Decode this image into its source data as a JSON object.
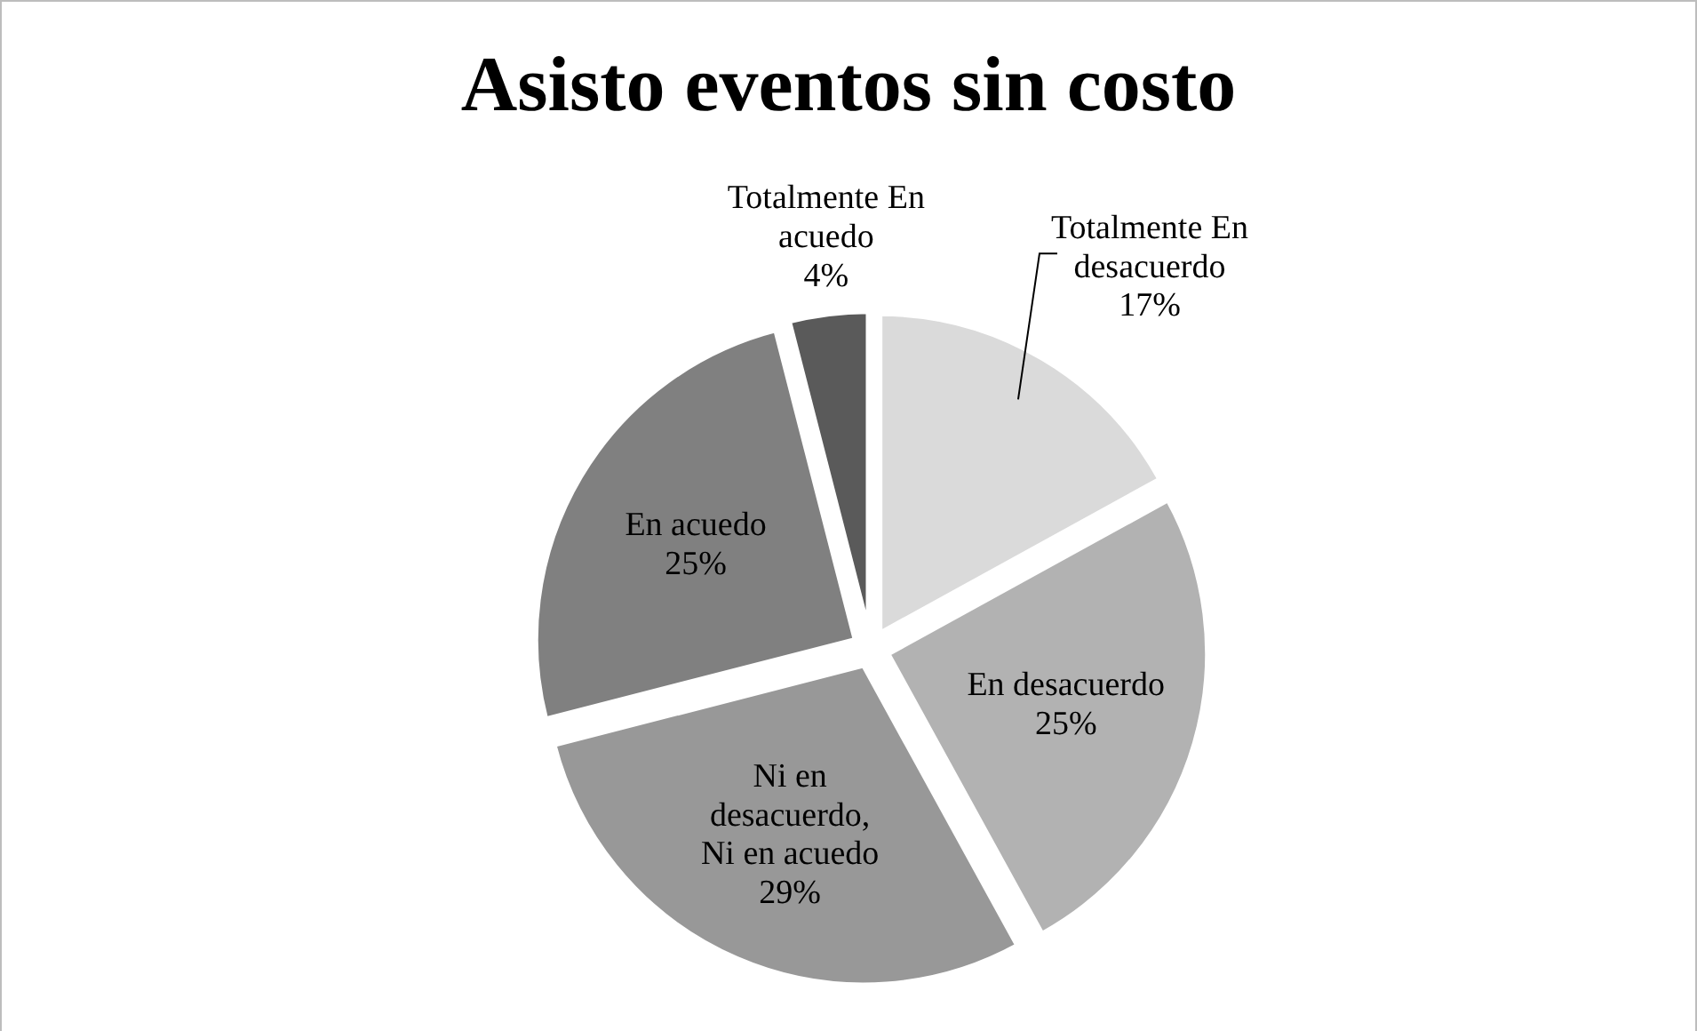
{
  "chart_data": {
    "type": "pie",
    "title": "Asisto eventos sin costo",
    "categories": [
      "Totalmente En desacuerdo",
      "En desacuerdo",
      "Ni en desacuerdo, Ni en acuedo",
      "En acuedo",
      "Totalmente En acuedo"
    ],
    "values": [
      17,
      25,
      29,
      25,
      4
    ],
    "value_labels": [
      "17%",
      "25%",
      "29%",
      "25%",
      "4%"
    ],
    "colors": [
      "#dadada",
      "#b2b2b2",
      "#989898",
      "#808080",
      "#5a5a5a"
    ]
  }
}
